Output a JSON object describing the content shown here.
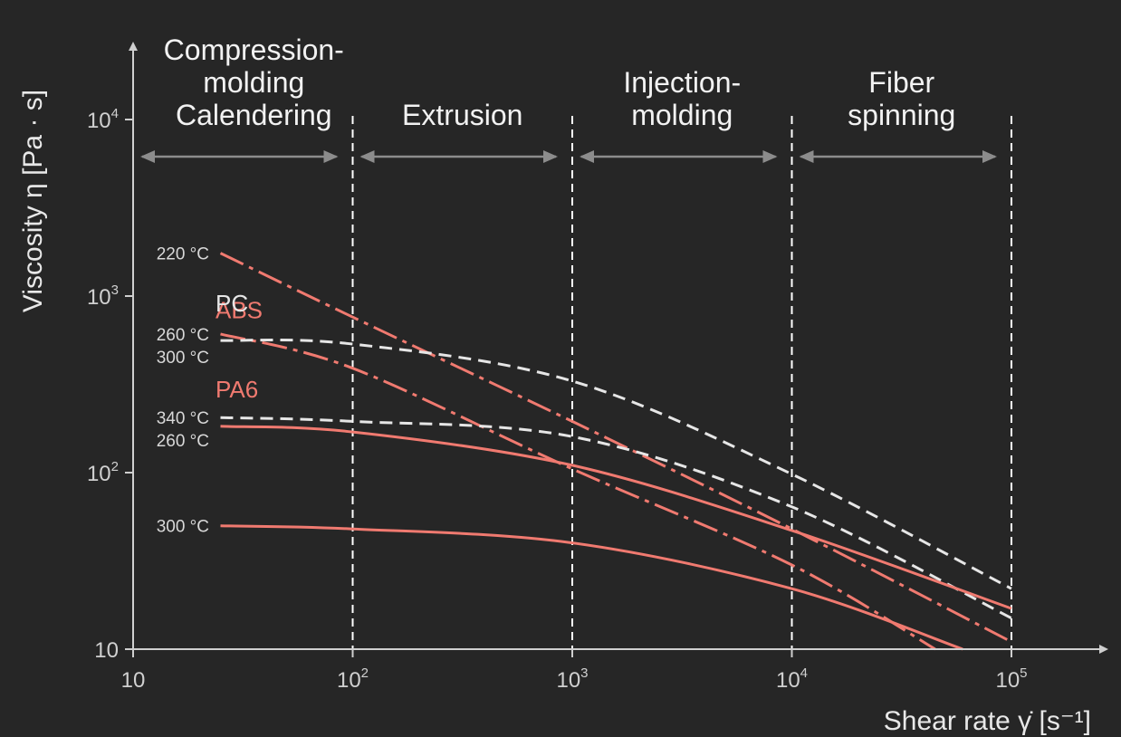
{
  "chart_data": {
    "type": "line",
    "xlabel": "Shear rate γ̇ [s⁻¹]",
    "ylabel": "Viscosity η [Pa · s]",
    "xscale": "log",
    "yscale": "log",
    "xlim": [
      10,
      100000
    ],
    "ylim": [
      10,
      10000
    ],
    "x_ticks": [
      {
        "value": 10,
        "base": "10",
        "exp": ""
      },
      {
        "value": 100,
        "base": "10",
        "exp": "2"
      },
      {
        "value": 1000,
        "base": "10",
        "exp": "3"
      },
      {
        "value": 10000,
        "base": "10",
        "exp": "4"
      },
      {
        "value": 100000,
        "base": "10",
        "exp": "5"
      }
    ],
    "y_ticks": [
      {
        "value": 10,
        "base": "10",
        "exp": ""
      },
      {
        "value": 100,
        "base": "10",
        "exp": "2"
      },
      {
        "value": 1000,
        "base": "10",
        "exp": "3"
      },
      {
        "value": 10000,
        "base": "10",
        "exp": "4"
      }
    ],
    "regions": [
      {
        "lines": [
          "Compression-",
          "molding",
          "Calendering"
        ],
        "from": 10,
        "to": 100
      },
      {
        "lines": [
          "Extrusion"
        ],
        "from": 100,
        "to": 1000
      },
      {
        "lines": [
          "Injection-",
          "molding"
        ],
        "from": 1000,
        "to": 10000
      },
      {
        "lines": [
          "Fiber",
          "spinning"
        ],
        "from": 10000,
        "to": 100000
      }
    ],
    "series": [
      {
        "material": "ABS",
        "temperature": "220 °C",
        "style": "dashdot",
        "color": "#f07a70",
        "points": [
          [
            25,
            1750
          ],
          [
            100,
            760
          ],
          [
            1000,
            195
          ],
          [
            10000,
            48
          ],
          [
            100000,
            11
          ]
        ]
      },
      {
        "material": "ABS",
        "temperature": "260 °C",
        "style": "dashdot",
        "color": "#f07a70",
        "points": [
          [
            25,
            610
          ],
          [
            100,
            390
          ],
          [
            1000,
            105
          ],
          [
            10000,
            30
          ],
          [
            45000,
            10
          ]
        ]
      },
      {
        "material": "PC",
        "temperature": "300 °C",
        "style": "dashed",
        "color": "#e6e6e6",
        "points": [
          [
            25,
            560
          ],
          [
            100,
            535
          ],
          [
            1000,
            330
          ],
          [
            10000,
            98
          ],
          [
            100000,
            22
          ]
        ]
      },
      {
        "material": "PC",
        "temperature": "340 °C",
        "style": "dashed",
        "color": "#e6e6e6",
        "points": [
          [
            25,
            205
          ],
          [
            100,
            195
          ],
          [
            1000,
            160
          ],
          [
            10000,
            64
          ],
          [
            100000,
            15
          ]
        ]
      },
      {
        "material": "PA6",
        "temperature": "260 °C",
        "style": "solid",
        "color": "#f07a70",
        "points": [
          [
            25,
            183
          ],
          [
            100,
            170
          ],
          [
            1000,
            110
          ],
          [
            10000,
            47
          ],
          [
            100000,
            17
          ]
        ]
      },
      {
        "material": "PA6",
        "temperature": "300 °C",
        "style": "solid",
        "color": "#f07a70",
        "points": [
          [
            25,
            50
          ],
          [
            100,
            48
          ],
          [
            1000,
            40
          ],
          [
            10000,
            22
          ],
          [
            60000,
            10
          ]
        ]
      }
    ],
    "material_labels": [
      {
        "text": "ABS",
        "color": "#f07a70"
      },
      {
        "text": "PC",
        "color": "#e6e6e6"
      },
      {
        "text": "PA6",
        "color": "#f07a70"
      }
    ],
    "grid": false,
    "legend": "none"
  }
}
